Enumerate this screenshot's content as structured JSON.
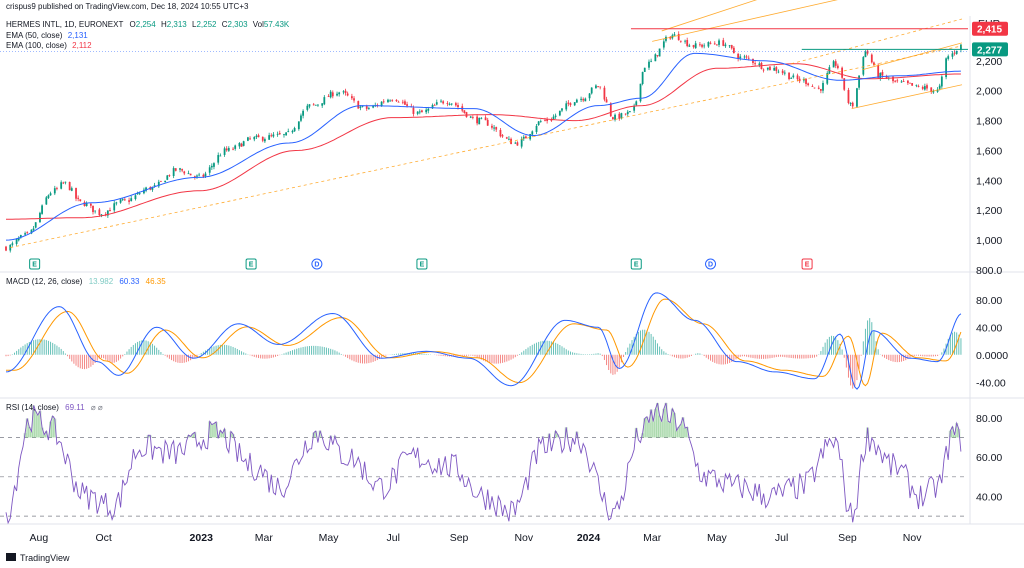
{
  "header": {
    "published": "crispus9 published on TradingView.com, Dec 18, 2024 10:55 UTC+3",
    "symbol": "HERMES INTL, 1D, EURONEXT",
    "ohlc": [
      {
        "label": "O",
        "value": "2,254"
      },
      {
        "label": "H",
        "value": "2,313"
      },
      {
        "label": "L",
        "value": "2,252"
      },
      {
        "label": "C",
        "value": "2,303"
      },
      {
        "label": "Vol",
        "value": "57.43K"
      }
    ],
    "ema50": {
      "label": "EMA (50, close)",
      "value": "2,131",
      "color": "#2962ff"
    },
    "ema100": {
      "label": "EMA (100, close)",
      "value": "2,112",
      "color": "#f23645"
    },
    "currency": "EUR"
  },
  "macd_header": {
    "label": "MACD (12, 26, close)",
    "hist": "13.982",
    "macd": "60.33",
    "signal": "46.35"
  },
  "rsi_header": {
    "label": "RSI (14, close)",
    "value": "69.11",
    "extra": "⌀ ⌀"
  },
  "footer": {
    "brand": "TradingView"
  },
  "colors": {
    "up": "#089981",
    "down": "#f23645",
    "ema50": "#2962ff",
    "ema100": "#f23645",
    "macd": "#2962ff",
    "signal": "#ff9800",
    "rsi": "#7e57c2",
    "channel": "#ff9800",
    "resistance": "#f23645",
    "support": "#089981",
    "hist_up": "#26a69a",
    "hist_down": "#ef5350"
  },
  "chart_data": [
    {
      "type": "candlestick",
      "pane": "price",
      "y_ticks": [
        "2,200",
        "2,000",
        "1,800",
        "1,600",
        "1,400",
        "1,200",
        "1,000",
        "800.0"
      ],
      "y_tick_values": [
        2200,
        2000,
        1800,
        1600,
        1400,
        1200,
        1000,
        800
      ],
      "ylim": [
        800,
        2500
      ],
      "x_ticks": [
        "Aug",
        "Oct",
        "2023",
        "Mar",
        "May",
        "Jul",
        "Sep",
        "Nov",
        "2024",
        "Mar",
        "May",
        "Jul",
        "Sep",
        "Nov"
      ],
      "x_tick_dates": [
        "2022-08-01",
        "2022-10-01",
        "2023-01-01",
        "2023-03-01",
        "2023-05-01",
        "2023-07-01",
        "2023-09-01",
        "2023-11-01",
        "2024-01-01",
        "2024-03-01",
        "2024-05-01",
        "2024-07-01",
        "2024-09-01",
        "2024-11-01"
      ],
      "xlim": [
        "2022-07-01",
        "2024-12-18"
      ],
      "close_anchors": [
        {
          "date": "2022-07-01",
          "close": 950
        },
        {
          "date": "2022-07-20",
          "close": 1030
        },
        {
          "date": "2022-08-15",
          "close": 1330
        },
        {
          "date": "2022-08-25",
          "close": 1380
        },
        {
          "date": "2022-09-10",
          "close": 1250
        },
        {
          "date": "2022-09-28",
          "close": 1180
        },
        {
          "date": "2022-10-20",
          "close": 1260
        },
        {
          "date": "2022-11-15",
          "close": 1350
        },
        {
          "date": "2022-12-10",
          "close": 1470
        },
        {
          "date": "2022-12-30",
          "close": 1420
        },
        {
          "date": "2023-01-25",
          "close": 1600
        },
        {
          "date": "2023-02-20",
          "close": 1680
        },
        {
          "date": "2023-03-20",
          "close": 1700
        },
        {
          "date": "2023-04-15",
          "close": 1900
        },
        {
          "date": "2023-05-10",
          "close": 1990
        },
        {
          "date": "2023-06-05",
          "close": 1880
        },
        {
          "date": "2023-07-01",
          "close": 1950
        },
        {
          "date": "2023-07-25",
          "close": 1850
        },
        {
          "date": "2023-08-20",
          "close": 1930
        },
        {
          "date": "2023-09-20",
          "close": 1800
        },
        {
          "date": "2023-10-25",
          "close": 1650
        },
        {
          "date": "2023-11-20",
          "close": 1800
        },
        {
          "date": "2023-12-25",
          "close": 1950
        },
        {
          "date": "2024-01-10",
          "close": 2030
        },
        {
          "date": "2024-01-25",
          "close": 1820
        },
        {
          "date": "2024-02-10",
          "close": 1850
        },
        {
          "date": "2024-02-25",
          "close": 2180
        },
        {
          "date": "2024-03-20",
          "close": 2370
        },
        {
          "date": "2024-04-10",
          "close": 2300
        },
        {
          "date": "2024-05-05",
          "close": 2320
        },
        {
          "date": "2024-05-25",
          "close": 2220
        },
        {
          "date": "2024-06-20",
          "close": 2150
        },
        {
          "date": "2024-07-20",
          "close": 2070
        },
        {
          "date": "2024-08-05",
          "close": 2010
        },
        {
          "date": "2024-08-20",
          "close": 2180
        },
        {
          "date": "2024-09-05",
          "close": 1900
        },
        {
          "date": "2024-09-18",
          "close": 2260
        },
        {
          "date": "2024-10-01",
          "close": 2100
        },
        {
          "date": "2024-10-20",
          "close": 2050
        },
        {
          "date": "2024-11-10",
          "close": 2020
        },
        {
          "date": "2024-11-25",
          "close": 2000
        },
        {
          "date": "2024-12-05",
          "close": 2230
        },
        {
          "date": "2024-12-18",
          "close": 2303
        }
      ],
      "ema50_anchors": [
        {
          "date": "2022-07-01",
          "value": 1000
        },
        {
          "date": "2022-09-20",
          "value": 1250
        },
        {
          "date": "2022-12-30",
          "value": 1420
        },
        {
          "date": "2023-03-25",
          "value": 1650
        },
        {
          "date": "2023-06-01",
          "value": 1900
        },
        {
          "date": "2023-09-15",
          "value": 1880
        },
        {
          "date": "2023-11-10",
          "value": 1700
        },
        {
          "date": "2024-01-10",
          "value": 1900
        },
        {
          "date": "2024-02-20",
          "value": 1950
        },
        {
          "date": "2024-04-10",
          "value": 2250
        },
        {
          "date": "2024-06-15",
          "value": 2200
        },
        {
          "date": "2024-08-25",
          "value": 2070
        },
        {
          "date": "2024-10-20",
          "value": 2100
        },
        {
          "date": "2024-12-18",
          "value": 2131
        }
      ],
      "ema100_anchors": [
        {
          "date": "2022-07-01",
          "value": 1140
        },
        {
          "date": "2022-09-10",
          "value": 1150
        },
        {
          "date": "2022-12-30",
          "value": 1330
        },
        {
          "date": "2023-04-01",
          "value": 1600
        },
        {
          "date": "2023-07-01",
          "value": 1820
        },
        {
          "date": "2023-10-01",
          "value": 1840
        },
        {
          "date": "2023-12-20",
          "value": 1800
        },
        {
          "date": "2024-02-20",
          "value": 1900
        },
        {
          "date": "2024-05-01",
          "value": 2150
        },
        {
          "date": "2024-07-15",
          "value": 2180
        },
        {
          "date": "2024-09-20",
          "value": 2080
        },
        {
          "date": "2024-12-18",
          "value": 2112
        }
      ],
      "levels": [
        {
          "name": "resistance",
          "value": 2415,
          "label": "2,415",
          "from": "2024-02-10"
        },
        {
          "name": "last-price",
          "value": 2277,
          "label": "2,277",
          "from": "2024-07-20"
        }
      ],
      "channel_lines": [
        {
          "from": {
            "date": "2022-07-05",
            "value": 950
          },
          "to": {
            "date": "2024-12-18",
            "value": 2300
          },
          "dashed": true
        },
        {
          "from": {
            "date": "2024-03-10",
            "value": 2400
          },
          "to": {
            "date": "2024-07-25",
            "value": 2720
          },
          "dashed": false
        },
        {
          "from": {
            "date": "2024-03-01",
            "value": 2330
          },
          "to": {
            "date": "2024-11-25",
            "value": 2760
          },
          "dashed": false
        },
        {
          "from": {
            "date": "2024-07-10",
            "value": 2180
          },
          "to": {
            "date": "2024-12-18",
            "value": 2480
          },
          "dashed": true
        },
        {
          "from": {
            "date": "2024-09-05",
            "value": 1880
          },
          "to": {
            "date": "2024-12-18",
            "value": 2040
          },
          "dashed": false
        },
        {
          "from": {
            "date": "2024-09-15",
            "value": 2140
          },
          "to": {
            "date": "2024-12-18",
            "value": 2320
          },
          "dashed": false
        }
      ],
      "events": [
        {
          "date": "2022-07-28",
          "label": "E",
          "kind": "earnings"
        },
        {
          "date": "2023-02-17",
          "label": "E",
          "kind": "earnings"
        },
        {
          "date": "2023-04-20",
          "label": "D",
          "kind": "dividend"
        },
        {
          "date": "2023-07-28",
          "label": "E",
          "kind": "earnings"
        },
        {
          "date": "2024-02-15",
          "label": "E",
          "kind": "earnings"
        },
        {
          "date": "2024-04-25",
          "label": "D",
          "kind": "dividend"
        },
        {
          "date": "2024-07-25",
          "label": "E",
          "kind": "earnings-red"
        }
      ]
    },
    {
      "type": "macd",
      "pane": "macd",
      "y_ticks": [
        "80.00",
        "40.00",
        "0.0000",
        "-40.00"
      ],
      "y_tick_values": [
        80,
        40,
        0,
        -40
      ],
      "ylim": [
        -60,
        100
      ],
      "macd_anchors": [
        {
          "date": "2022-07-01",
          "value": -25
        },
        {
          "date": "2022-08-20",
          "value": 70
        },
        {
          "date": "2022-09-25",
          "value": -10
        },
        {
          "date": "2022-10-15",
          "value": -30
        },
        {
          "date": "2022-11-20",
          "value": 40
        },
        {
          "date": "2022-12-25",
          "value": -5
        },
        {
          "date": "2023-02-05",
          "value": 45
        },
        {
          "date": "2023-03-15",
          "value": 15
        },
        {
          "date": "2023-05-05",
          "value": 60
        },
        {
          "date": "2023-06-20",
          "value": -5
        },
        {
          "date": "2023-08-01",
          "value": 5
        },
        {
          "date": "2023-09-10",
          "value": -5
        },
        {
          "date": "2023-10-20",
          "value": -45
        },
        {
          "date": "2023-12-10",
          "value": 50
        },
        {
          "date": "2024-01-10",
          "value": 40
        },
        {
          "date": "2024-01-30",
          "value": -20
        },
        {
          "date": "2024-03-05",
          "value": 90
        },
        {
          "date": "2024-04-10",
          "value": 50
        },
        {
          "date": "2024-05-20",
          "value": -10
        },
        {
          "date": "2024-06-25",
          "value": -25
        },
        {
          "date": "2024-08-01",
          "value": -35
        },
        {
          "date": "2024-08-25",
          "value": 30
        },
        {
          "date": "2024-09-10",
          "value": -50
        },
        {
          "date": "2024-09-25",
          "value": 35
        },
        {
          "date": "2024-10-30",
          "value": -5
        },
        {
          "date": "2024-11-25",
          "value": -10
        },
        {
          "date": "2024-12-18",
          "value": 60
        }
      ],
      "signal_lag_days": 8
    },
    {
      "type": "rsi",
      "pane": "rsi",
      "y_ticks": [
        "80.00",
        "60.00",
        "40.00"
      ],
      "y_tick_values": [
        80,
        60,
        40
      ],
      "ylim": [
        27,
        85
      ],
      "bands": [
        70,
        50,
        30
      ],
      "rsi_anchors": [
        {
          "date": "2022-07-01",
          "value": 32
        },
        {
          "date": "2022-07-25",
          "value": 80
        },
        {
          "date": "2022-08-10",
          "value": 75
        },
        {
          "date": "2022-09-15",
          "value": 40
        },
        {
          "date": "2022-10-10",
          "value": 35
        },
        {
          "date": "2022-11-05",
          "value": 65
        },
        {
          "date": "2022-12-05",
          "value": 62
        },
        {
          "date": "2023-01-15",
          "value": 72
        },
        {
          "date": "2023-02-20",
          "value": 55
        },
        {
          "date": "2023-03-15",
          "value": 45
        },
        {
          "date": "2023-04-20",
          "value": 72
        },
        {
          "date": "2023-05-20",
          "value": 60
        },
        {
          "date": "2023-06-20",
          "value": 45
        },
        {
          "date": "2023-07-20",
          "value": 60
        },
        {
          "date": "2023-08-25",
          "value": 55
        },
        {
          "date": "2023-09-25",
          "value": 40
        },
        {
          "date": "2023-10-20",
          "value": 32
        },
        {
          "date": "2023-11-20",
          "value": 65
        },
        {
          "date": "2023-12-20",
          "value": 70
        },
        {
          "date": "2024-01-25",
          "value": 32
        },
        {
          "date": "2024-02-20",
          "value": 72
        },
        {
          "date": "2024-03-05",
          "value": 83
        },
        {
          "date": "2024-03-25",
          "value": 78
        },
        {
          "date": "2024-04-20",
          "value": 50
        },
        {
          "date": "2024-05-20",
          "value": 45
        },
        {
          "date": "2024-06-20",
          "value": 40
        },
        {
          "date": "2024-07-20",
          "value": 45
        },
        {
          "date": "2024-08-20",
          "value": 68
        },
        {
          "date": "2024-09-05",
          "value": 30
        },
        {
          "date": "2024-09-20",
          "value": 70
        },
        {
          "date": "2024-10-15",
          "value": 55
        },
        {
          "date": "2024-11-10",
          "value": 40
        },
        {
          "date": "2024-11-25",
          "value": 45
        },
        {
          "date": "2024-12-10",
          "value": 72
        },
        {
          "date": "2024-12-18",
          "value": 69
        }
      ]
    }
  ]
}
